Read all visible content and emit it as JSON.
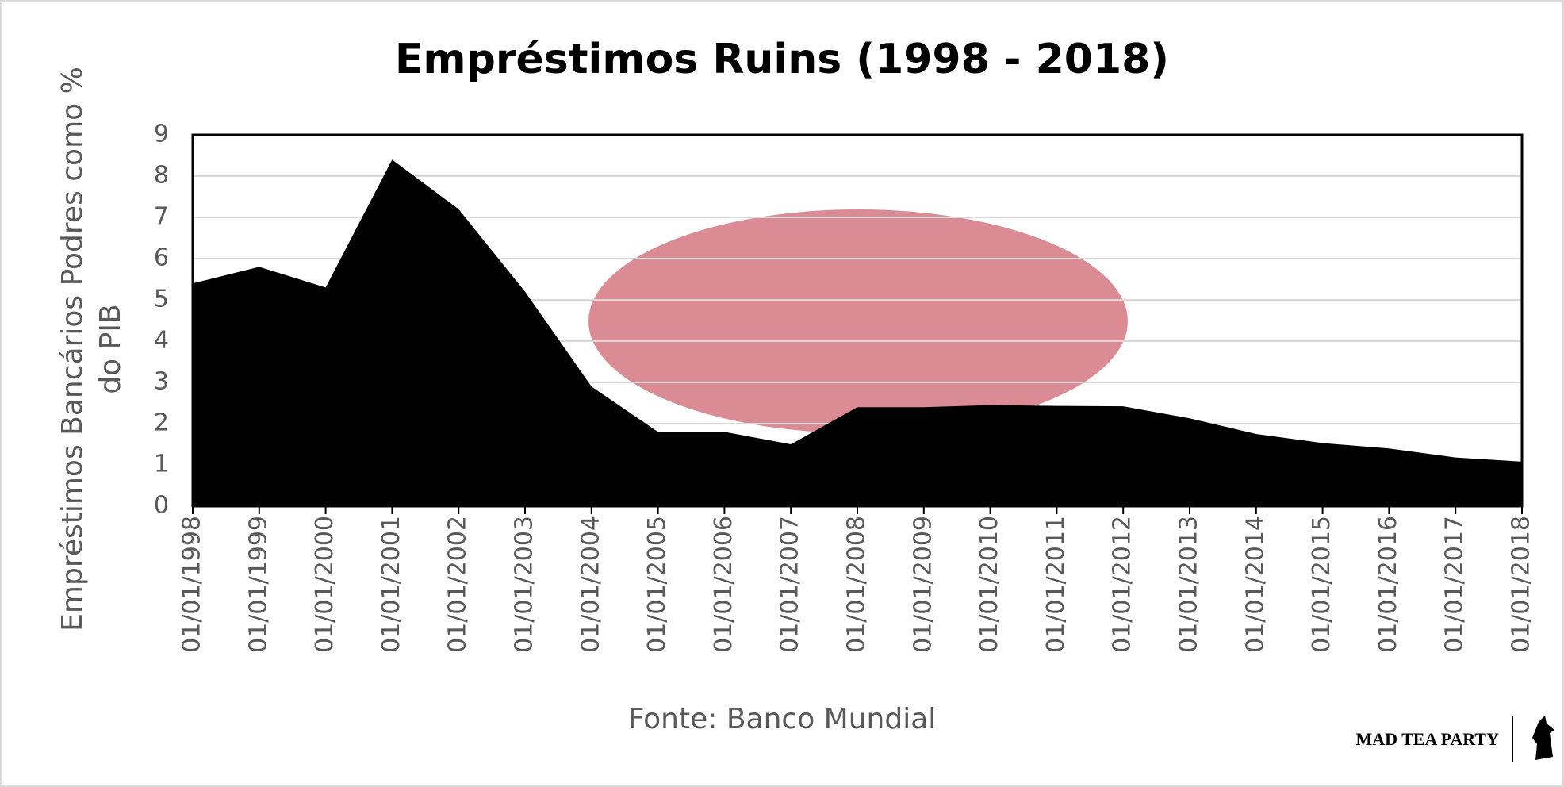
{
  "chart_data": {
    "type": "area",
    "title": "Empréstimos Ruins (1998 - 2018)",
    "y_label": "Empréstimos Bancários Podres como % do PIB",
    "x_label": "Fonte: Banco Mundial",
    "brand": "MAD TEA PARTY",
    "categories": [
      "01/01/1998",
      "01/01/1999",
      "01/01/2000",
      "01/01/2001",
      "01/01/2002",
      "01/01/2003",
      "01/01/2004",
      "01/01/2005",
      "01/01/2006",
      "01/01/2007",
      "01/01/2008",
      "01/01/2009",
      "01/01/2010",
      "01/01/2011",
      "01/01/2012",
      "01/01/2013",
      "01/01/2014",
      "01/01/2015",
      "01/01/2016",
      "01/01/2017",
      "01/01/2018"
    ],
    "values": [
      5.4,
      5.8,
      5.3,
      8.4,
      7.2,
      5.2,
      2.9,
      1.8,
      1.8,
      1.5,
      2.4,
      2.4,
      2.45,
      2.43,
      2.42,
      2.13,
      1.75,
      1.53,
      1.4,
      1.18,
      1.08
    ],
    "color": "#000000",
    "ylim": [
      0,
      9
    ],
    "yticks": [
      0,
      1,
      2,
      3,
      4,
      5,
      6,
      7,
      8,
      9
    ],
    "grid": true
  }
}
